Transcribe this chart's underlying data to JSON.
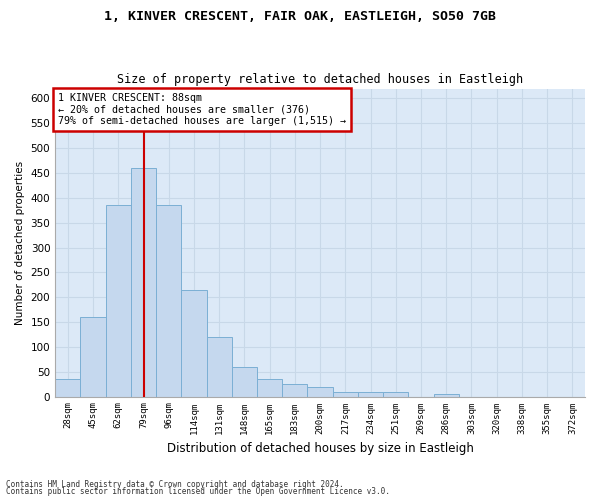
{
  "title1": "1, KINVER CRESCENT, FAIR OAK, EASTLEIGH, SO50 7GB",
  "title2": "Size of property relative to detached houses in Eastleigh",
  "xlabel": "Distribution of detached houses by size in Eastleigh",
  "ylabel": "Number of detached properties",
  "footnote1": "Contains HM Land Registry data © Crown copyright and database right 2024.",
  "footnote2": "Contains public sector information licensed under the Open Government Licence v3.0.",
  "bar_labels": [
    "28sqm",
    "45sqm",
    "62sqm",
    "79sqm",
    "96sqm",
    "114sqm",
    "131sqm",
    "148sqm",
    "165sqm",
    "183sqm",
    "200sqm",
    "217sqm",
    "234sqm",
    "251sqm",
    "269sqm",
    "286sqm",
    "303sqm",
    "320sqm",
    "338sqm",
    "355sqm",
    "372sqm"
  ],
  "bar_values": [
    35,
    160,
    385,
    460,
    385,
    215,
    120,
    60,
    35,
    25,
    20,
    10,
    10,
    10,
    0,
    5,
    0,
    0,
    0,
    0,
    0
  ],
  "bar_color": "#c5d8ee",
  "bar_edge_color": "#7bafd4",
  "marker_label": "1 KINVER CRESCENT: 88sqm",
  "annotation_line1": "← 20% of detached houses are smaller (376)",
  "annotation_line2": "79% of semi-detached houses are larger (1,515) →",
  "annotation_box_color": "#ffffff",
  "annotation_box_edge": "#cc0000",
  "marker_line_color": "#cc0000",
  "ylim": [
    0,
    620
  ],
  "yticks": [
    0,
    50,
    100,
    150,
    200,
    250,
    300,
    350,
    400,
    450,
    500,
    550,
    600
  ],
  "plot_bg_color": "#dce9f7",
  "grid_color": "#c8d8e8",
  "fig_bg_color": "#ffffff"
}
